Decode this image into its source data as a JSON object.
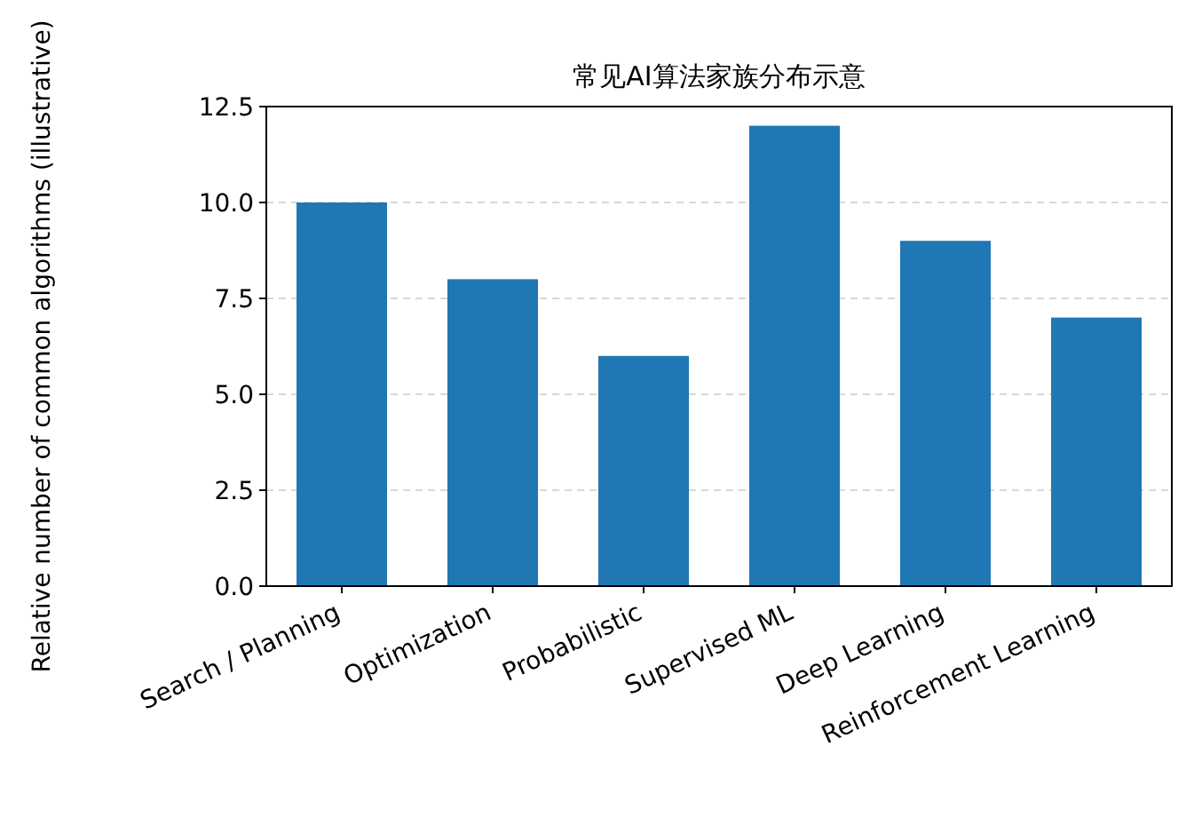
{
  "chart_data": {
    "type": "bar",
    "title": "常见AI算法家族分布示意",
    "ylabel": "Relative number of common algorithms (illustrative)",
    "categories": [
      "Search / Planning",
      "Optimization",
      "Probabilistic",
      "Supervised ML",
      "Deep Learning",
      "Reinforcement Learning"
    ],
    "values": [
      10,
      8,
      6,
      12,
      9,
      7
    ],
    "color": "#1f77b4",
    "ylim": [
      0,
      12.5
    ],
    "yticks": [
      {
        "value": 0,
        "label": "0.0"
      },
      {
        "value": 2.5,
        "label": "2.5"
      },
      {
        "value": 5,
        "label": "5.0"
      },
      {
        "value": 7.5,
        "label": "7.5"
      },
      {
        "value": 10,
        "label": "10.0"
      },
      {
        "value": 12.5,
        "label": "12.5"
      }
    ],
    "grid": "y"
  }
}
